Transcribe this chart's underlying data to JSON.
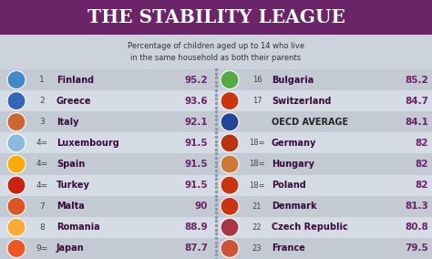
{
  "title": "THE STABILITY LEAGUE",
  "subtitle": "Percentage of children aged up to 14 who live\nin the same household as both their parents",
  "title_bg": "#6B2467",
  "title_color": "#FFFFFF",
  "bg_color": "#CDD3DC",
  "row_bg_light": "#D6DCE5",
  "row_bg_dark": "#C4CAD4",
  "left_data": [
    {
      "rank": "1",
      "country": "Finland",
      "value": "95.2"
    },
    {
      "rank": "2",
      "country": "Greece",
      "value": "93.6"
    },
    {
      "rank": "3",
      "country": "Italy",
      "value": "92.1"
    },
    {
      "rank": "4=",
      "country": "Luxembourg",
      "value": "91.5"
    },
    {
      "rank": "4=",
      "country": "Spain",
      "value": "91.5"
    },
    {
      "rank": "4=",
      "country": "Turkey",
      "value": "91.5"
    },
    {
      "rank": "7",
      "country": "Malta",
      "value": "90"
    },
    {
      "rank": "8",
      "country": "Romania",
      "value": "88.9"
    },
    {
      "rank": "9=",
      "country": "Japan",
      "value": "87.7"
    }
  ],
  "right_data": [
    {
      "rank": "16",
      "country": "Bulgaria",
      "value": "85.2"
    },
    {
      "rank": "17",
      "country": "Switzerland",
      "value": "84.7"
    },
    {
      "rank": "",
      "country": "OECD AVERAGE",
      "value": "84.1"
    },
    {
      "rank": "18=",
      "country": "Germany",
      "value": "82"
    },
    {
      "rank": "18=",
      "country": "Hungary",
      "value": "82"
    },
    {
      "rank": "18=",
      "country": "Poland",
      "value": "82"
    },
    {
      "rank": "21",
      "country": "Denmark",
      "value": "81.3"
    },
    {
      "rank": "22",
      "country": "Czech Republic",
      "value": "80.8"
    },
    {
      "rank": "23",
      "country": "France",
      "value": "79.5"
    }
  ],
  "rank_color": "#444444",
  "country_color": "#3A0A3A",
  "value_color": "#6B2467",
  "oecd_country_color": "#222222",
  "divider_color": "#8899AA",
  "flag_colors": [
    "#4477BB",
    "#4477BB",
    "#DD7733",
    "#AACCEE",
    "#FFAA00",
    "#CC2222",
    "#CC4411",
    "#FFAA22",
    "#EE6633",
    "#44AA55",
    "#CC3311",
    "#1166BB",
    "#CC3311",
    "#CC3311",
    "#DD7722",
    "#CC3311",
    "#CC3311",
    "#BB3344"
  ]
}
